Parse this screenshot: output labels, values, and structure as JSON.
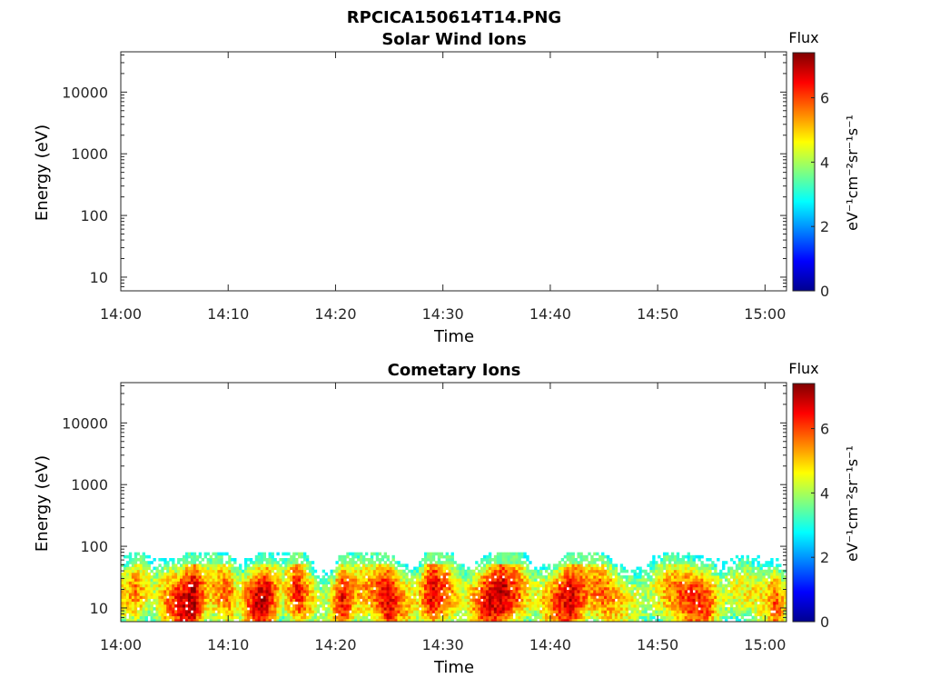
{
  "figure_title": "RPCICA150614T14.PNG",
  "chart_data": [
    {
      "type": "heatmap",
      "title": "Solar Wind Ions",
      "xlabel": "Time",
      "ylabel": "Energy (eV)",
      "yscale": "log",
      "x_ticks": [
        "14:00",
        "14:10",
        "14:20",
        "14:30",
        "14:40",
        "14:50",
        "15:00"
      ],
      "x_range": [
        "14:00",
        "15:02"
      ],
      "y_ticks": [
        10,
        100,
        1000,
        10000
      ],
      "y_range": [
        6,
        45000
      ],
      "colorbar": {
        "title": "Flux",
        "label": "eV⁻¹cm⁻²sr⁻¹s⁻¹",
        "ticks": [
          0,
          2,
          4,
          6
        ],
        "range": [
          0,
          7.4
        ],
        "colormap": "jet"
      },
      "energy_max": null,
      "intensity_profile": []
    },
    {
      "type": "heatmap",
      "title": "Cometary Ions",
      "xlabel": "Time",
      "ylabel": "Energy (eV)",
      "yscale": "log",
      "x_ticks": [
        "14:00",
        "14:10",
        "14:20",
        "14:30",
        "14:40",
        "14:50",
        "15:00"
      ],
      "x_range": [
        "14:00",
        "15:02"
      ],
      "y_ticks": [
        10,
        100,
        1000,
        10000
      ],
      "y_range": [
        6,
        45000
      ],
      "colorbar": {
        "title": "Flux",
        "label": "eV⁻¹cm⁻²sr⁻¹s⁻¹",
        "ticks": [
          0,
          2,
          4,
          6
        ],
        "range": [
          0,
          7.4
        ],
        "colormap": "jet"
      },
      "energy_max": 80,
      "intensity_profile": [
        {
          "minute": 0.0,
          "flux": 4.8
        },
        {
          "minute": 1.5,
          "flux": 5.6
        },
        {
          "minute": 3.0,
          "flux": 4.2
        },
        {
          "minute": 4.5,
          "flux": 5.8
        },
        {
          "minute": 6.0,
          "flux": 6.8
        },
        {
          "minute": 6.8,
          "flux": 7.2
        },
        {
          "minute": 8.0,
          "flux": 5.0
        },
        {
          "minute": 10.0,
          "flux": 5.8
        },
        {
          "minute": 11.0,
          "flux": 4.5
        },
        {
          "minute": 12.5,
          "flux": 6.8
        },
        {
          "minute": 13.5,
          "flux": 7.0
        },
        {
          "minute": 15.0,
          "flux": 4.6
        },
        {
          "minute": 16.5,
          "flux": 6.5
        },
        {
          "minute": 18.5,
          "flux": 4.0
        },
        {
          "minute": 19.5,
          "flux": 4.5
        },
        {
          "minute": 20.5,
          "flux": 6.6
        },
        {
          "minute": 22.0,
          "flux": 5.2
        },
        {
          "minute": 23.5,
          "flux": 5.5
        },
        {
          "minute": 25.0,
          "flux": 6.9
        },
        {
          "minute": 26.0,
          "flux": 5.5
        },
        {
          "minute": 27.5,
          "flux": 4.6
        },
        {
          "minute": 29.0,
          "flux": 6.8
        },
        {
          "minute": 30.0,
          "flux": 6.0
        },
        {
          "minute": 32.0,
          "flux": 4.4
        },
        {
          "minute": 34.0,
          "flux": 6.6
        },
        {
          "minute": 35.5,
          "flux": 7.0
        },
        {
          "minute": 37.0,
          "flux": 5.8
        },
        {
          "minute": 38.5,
          "flux": 4.3
        },
        {
          "minute": 41.0,
          "flux": 6.4
        },
        {
          "minute": 42.0,
          "flux": 6.9
        },
        {
          "minute": 43.5,
          "flux": 5.4
        },
        {
          "minute": 45.0,
          "flux": 5.8
        },
        {
          "minute": 47.0,
          "flux": 4.8
        },
        {
          "minute": 49.0,
          "flux": 4.0
        },
        {
          "minute": 51.0,
          "flux": 5.4
        },
        {
          "minute": 53.0,
          "flux": 6.2
        },
        {
          "minute": 54.5,
          "flux": 6.3
        },
        {
          "minute": 56.0,
          "flux": 4.3
        },
        {
          "minute": 58.0,
          "flux": 4.6
        },
        {
          "minute": 60.0,
          "flux": 4.8
        },
        {
          "minute": 61.0,
          "flux": 6.2
        },
        {
          "minute": 62.0,
          "flux": 4.5
        }
      ]
    }
  ]
}
